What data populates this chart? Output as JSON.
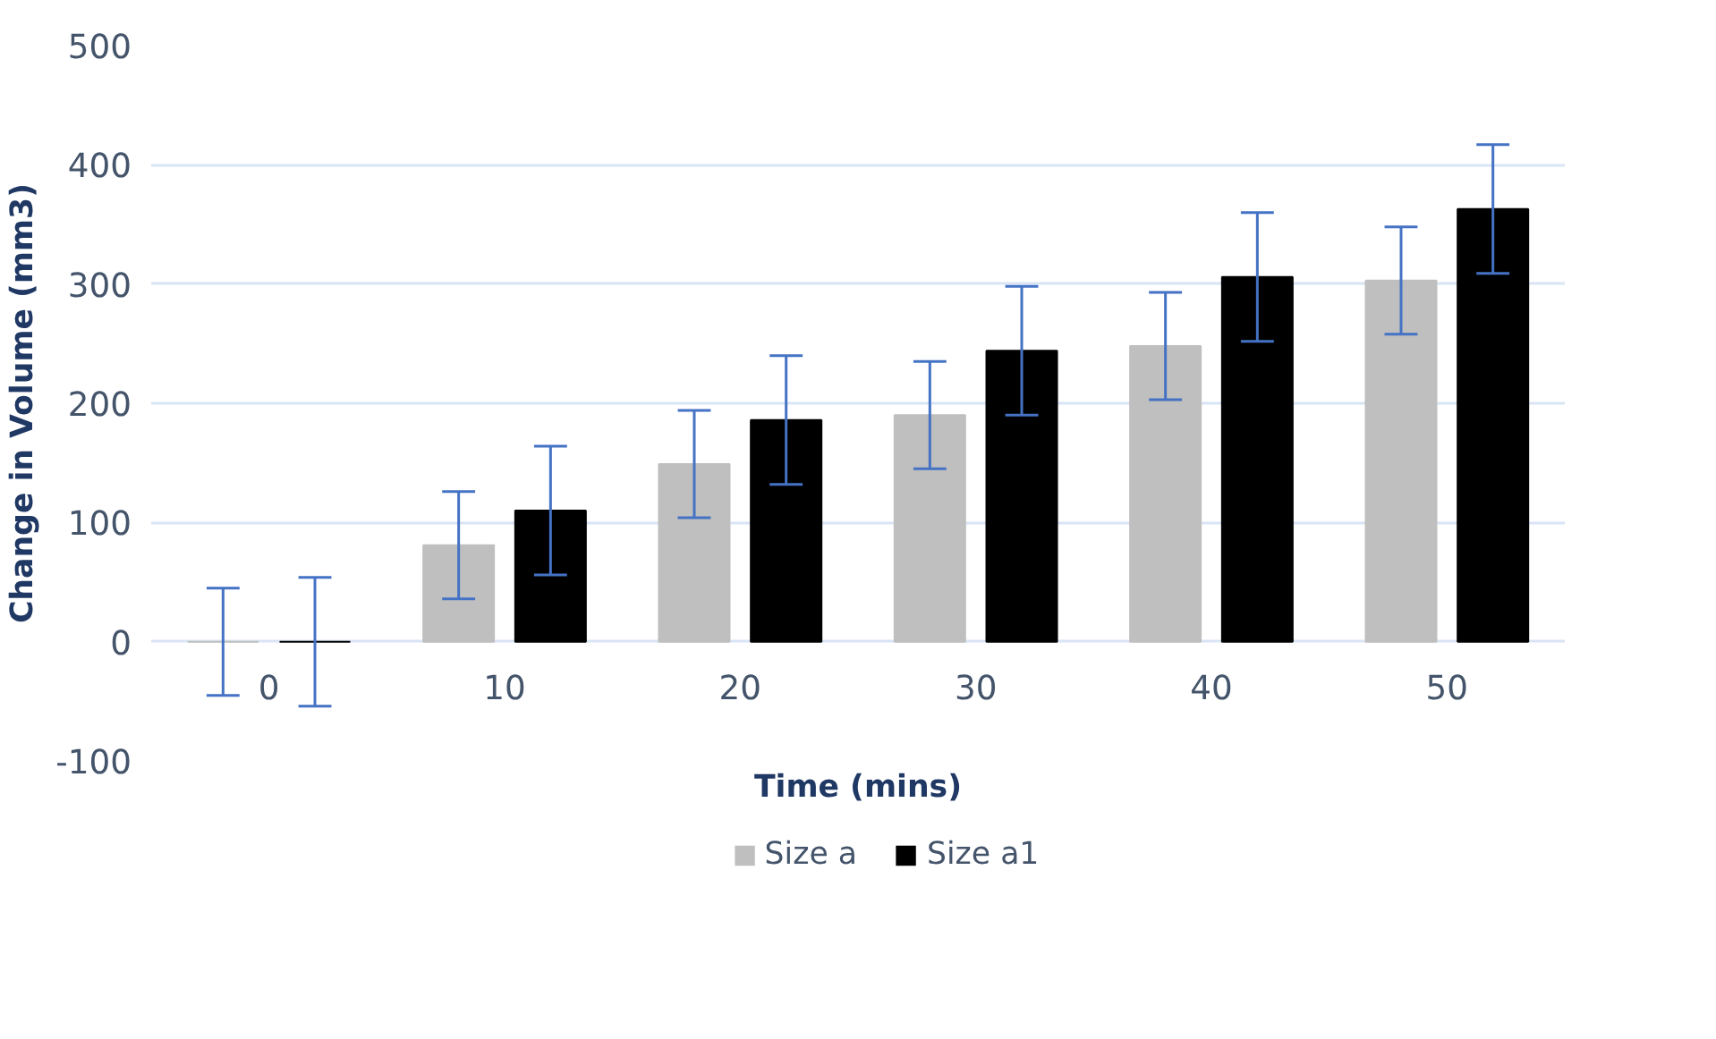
{
  "chart_data": {
    "type": "bar",
    "xlabel": "Time (mins)",
    "ylabel": "Change in Volume (mm3)",
    "categories": [
      "0",
      "10",
      "20",
      "30",
      "40",
      "50"
    ],
    "series": [
      {
        "name": "Size a",
        "color": "#bfbfbf",
        "values": [
          0,
          81,
          149,
          190,
          248,
          303
        ],
        "errors": [
          45,
          45,
          45,
          45,
          45,
          45
        ]
      },
      {
        "name": "Size a1",
        "color": "#000000",
        "values": [
          0,
          110,
          186,
          244,
          306,
          363
        ],
        "errors": [
          54,
          54,
          54,
          54,
          54,
          54
        ]
      }
    ],
    "ylim": [
      -100,
      500
    ],
    "yticks": [
      -100,
      0,
      100,
      200,
      300,
      400,
      500
    ],
    "grid": "y",
    "legend": "bottom"
  }
}
